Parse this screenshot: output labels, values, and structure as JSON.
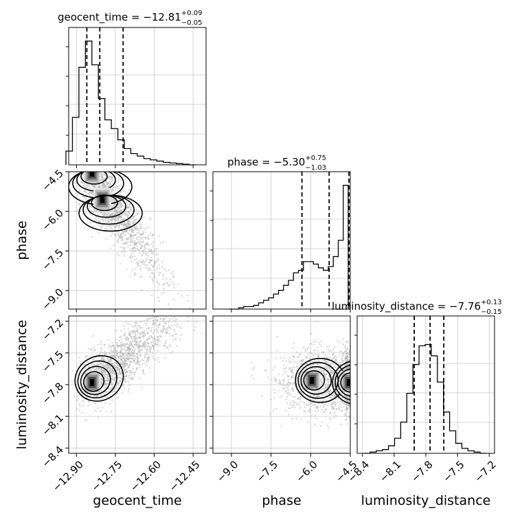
{
  "chart_data": {
    "type": "corner",
    "parameters": [
      "geocent_time",
      "phase",
      "luminosity_distance"
    ],
    "titles": {
      "geocent_time": {
        "text": "geocent_time = −12.81",
        "plus": "+0.09",
        "minus": "−0.05"
      },
      "phase": {
        "text": "phase = −5.30",
        "plus": "+0.75",
        "minus": "−1.03"
      },
      "luminosity_distance": {
        "text": "luminosity_distance = −7.76",
        "plus": "+0.13",
        "minus": "−0.15"
      }
    },
    "axis_labels": {
      "geocent_time": "geocent_time",
      "phase": "phase",
      "luminosity_distance": "luminosity_distance"
    },
    "ranges": {
      "geocent_time": [
        -12.93,
        -12.4
      ],
      "phase": [
        -9.7,
        -4.5
      ],
      "luminosity_distance": [
        -8.45,
        -7.15
      ]
    },
    "ticks": {
      "geocent_time": {
        "values": [
          -12.9,
          -12.75,
          -12.6,
          -12.45
        ],
        "labels": [
          "−12.90",
          "−12.75",
          "−12.60",
          "−12.45"
        ]
      },
      "phase": {
        "values": [
          -9.0,
          -7.5,
          -6.0,
          -4.5
        ],
        "labels": [
          "−9.0",
          "−7.5",
          "−6.0",
          "−4.5"
        ]
      },
      "luminosity_distance": {
        "values": [
          -8.4,
          -8.1,
          -7.8,
          -7.5,
          -7.2
        ],
        "labels": [
          "−8.4",
          "−8.1",
          "−7.8",
          "−7.5",
          "−7.2"
        ]
      }
    },
    "quantiles": {
      "geocent_time": [
        -12.86,
        -12.81,
        -12.72
      ],
      "phase": [
        -6.33,
        -5.3,
        -4.55
      ],
      "luminosity_distance": [
        -7.91,
        -7.76,
        -7.63
      ]
    },
    "histograms": {
      "geocent_time": [
        0.11,
        0.38,
        0.78,
        0.99,
        0.8,
        0.53,
        0.36,
        0.29,
        0.2,
        0.13,
        0.09,
        0.07,
        0.05,
        0.04,
        0.03,
        0.02,
        0.015,
        0.01,
        0.005,
        0.0
      ],
      "phase": [
        0.0,
        0.0,
        0.01,
        0.02,
        0.02,
        0.03,
        0.05,
        0.07,
        0.09,
        0.12,
        0.15,
        0.19,
        0.23,
        0.29,
        0.31,
        0.38,
        0.38,
        0.36,
        0.33,
        0.31,
        0.34,
        0.42,
        0.55,
        0.99
      ],
      "luminosity_distance": [
        0.0,
        0.01,
        0.02,
        0.03,
        0.06,
        0.12,
        0.25,
        0.48,
        0.71,
        0.86,
        0.87,
        0.78,
        0.57,
        0.33,
        0.18,
        0.08,
        0.04,
        0.02,
        0.01,
        0.0
      ]
    },
    "contour_levels": [
      0.5,
      1.0,
      1.5,
      2.0
    ],
    "modes": {
      "phase_vs_geocent_time": [
        {
          "x": -12.84,
          "y": -4.55
        },
        {
          "x": -12.8,
          "y": -5.55
        }
      ],
      "luminosity_distance_vs_geocent_time": [
        {
          "x": -12.84,
          "y": -7.78
        }
      ],
      "luminosity_distance_vs_phase": [
        {
          "x": -5.95,
          "y": -7.76
        },
        {
          "x": -4.55,
          "y": -7.78
        }
      ]
    },
    "grid": true,
    "colors": {
      "line": "#000000",
      "scatter": "#b0b0b0",
      "grid": "#c8c8c8"
    }
  }
}
